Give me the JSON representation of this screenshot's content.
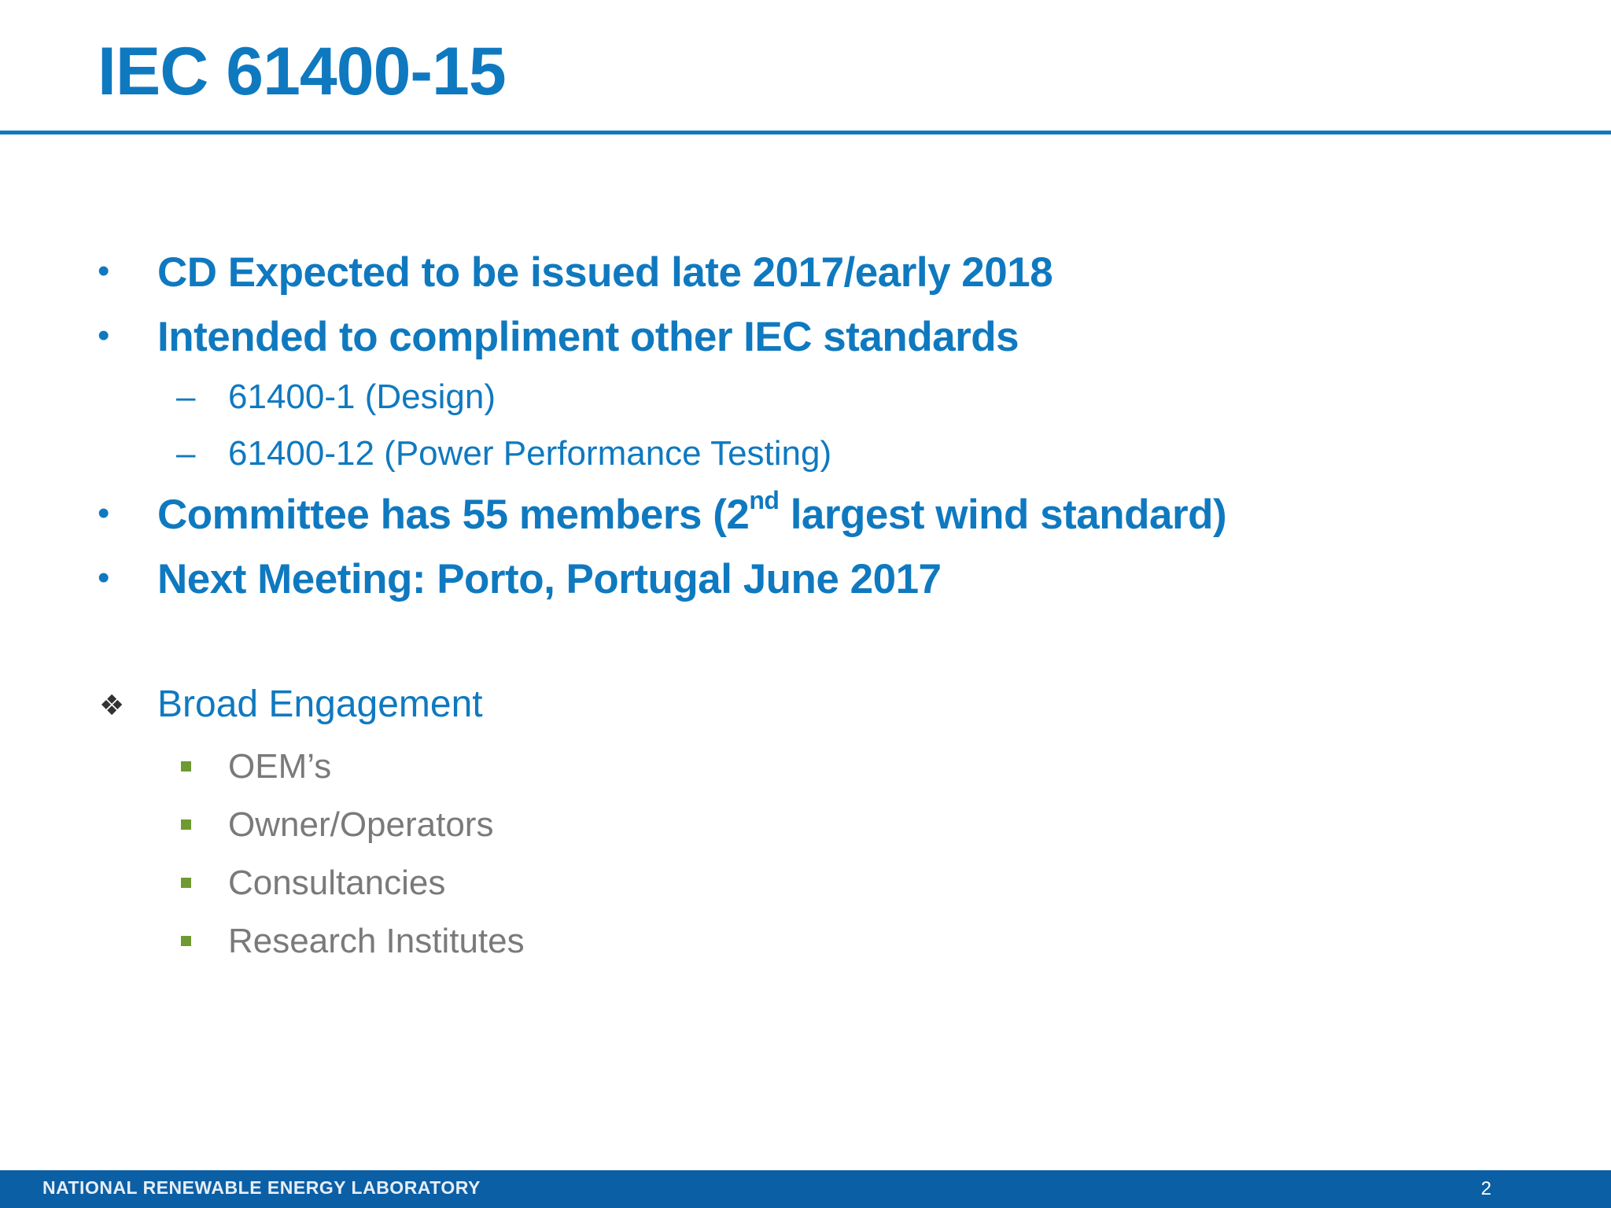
{
  "slide": {
    "title": "IEC 61400-15",
    "page_number": "2"
  },
  "bullets": [
    {
      "text": "CD Expected to be issued late 2017/early 2018"
    },
    {
      "text": "Intended to compliment other IEC standards"
    },
    {
      "text": "61400-1 (Design)"
    },
    {
      "text": "61400-12 (Power Performance Testing)"
    },
    {
      "text_pre": "Committee has 55 members (2",
      "text_sup": "nd",
      "text_post": " largest wind standard)"
    },
    {
      "text": "Next Meeting:  Porto, Portugal June 2017"
    }
  ],
  "engagement": {
    "heading": "Broad Engagement",
    "items": [
      "OEM’s",
      "Owner/Operators",
      "Consultancies",
      "Research Institutes"
    ]
  },
  "footer": {
    "organization": "NATIONAL RENEWABLE ENERGY LABORATORY"
  },
  "colors": {
    "accent_blue": "#0f79c0",
    "footer_blue": "#0b5fa5",
    "square_green": "#6f9a32",
    "muted_gray": "#7a7a7a"
  },
  "icons": {
    "level1": "bullet-dot-icon",
    "level2": "en-dash-icon",
    "heading": "diamond-cluster-icon",
    "sub": "green-square-icon"
  }
}
